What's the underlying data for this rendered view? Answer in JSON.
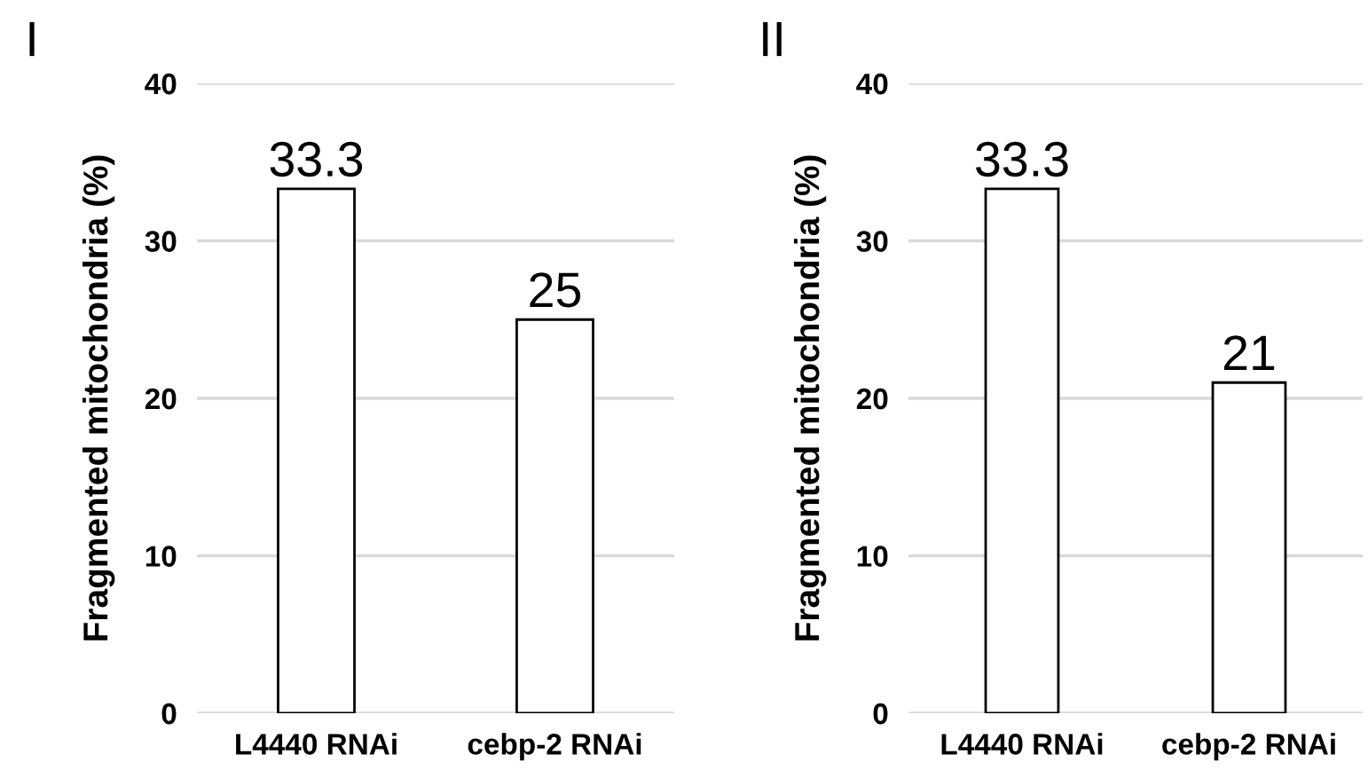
{
  "chart_data": [
    {
      "type": "bar",
      "title": "I",
      "ylabel": "Fragmented mitochondria (%)",
      "categories": [
        "L4440 RNAi",
        "cebp-2 RNAi"
      ],
      "values": [
        33.3,
        25
      ],
      "color": "#ffffff",
      "ylim": [
        0,
        40
      ],
      "yticks": [
        0,
        10,
        20,
        30,
        40
      ],
      "grid": "y",
      "data_labels": true
    },
    {
      "type": "bar",
      "title": "II",
      "ylabel": "Fragmented mitochondria (%)",
      "categories": [
        "L4440 RNAi",
        "cebp-2 RNAi"
      ],
      "values": [
        33.3,
        21
      ],
      "color": "#ffffff",
      "ylim": [
        0,
        40
      ],
      "yticks": [
        0,
        10,
        20,
        30,
        40
      ],
      "grid": "y",
      "data_labels": true
    }
  ]
}
